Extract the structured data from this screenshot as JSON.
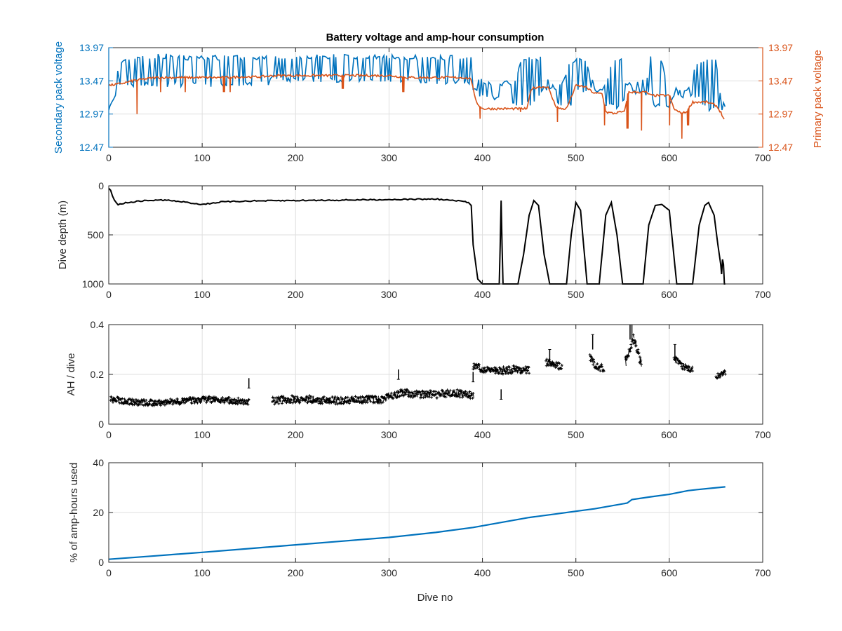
{
  "figure": {
    "title": "Battery voltage and amp-hour consumption",
    "xlabel": "Dive no"
  },
  "colors": {
    "secondary": "#0072BD",
    "primary": "#D95319",
    "black": "#000000",
    "grid": "#dfdfdf",
    "axis": "#262626"
  },
  "chart_data": [
    {
      "id": "voltage",
      "type": "line",
      "xlim": [
        0,
        700
      ],
      "xticks": [
        0,
        100,
        200,
        300,
        400,
        500,
        600,
        700
      ],
      "ylabel_left": "Secondary pack voltage",
      "ylabel_right": "Primary pack voltage",
      "ylim": [
        12.47,
        13.97
      ],
      "yticks": [
        12.47,
        12.97,
        13.47,
        13.97
      ],
      "grid": true,
      "series": [
        {
          "name": "Secondary pack voltage",
          "axis": "left",
          "x": [
            0,
            2,
            5,
            8,
            10,
            12,
            14,
            16,
            18,
            20,
            30,
            40,
            60,
            80,
            100,
            120,
            140,
            160,
            170,
            175,
            180,
            200,
            220,
            240,
            260,
            280,
            300,
            320,
            340,
            360,
            380,
            388,
            392,
            400,
            420,
            435,
            440,
            448,
            452,
            465,
            470,
            478,
            482,
            495,
            500,
            510,
            520,
            528,
            532,
            540,
            548,
            553,
            560,
            575,
            580,
            585,
            590,
            600,
            605,
            615,
            620,
            630,
            640,
            650,
            655,
            660
          ],
          "low": [
            13.03,
            13.1,
            13.15,
            13.2,
            13.25,
            13.35,
            13.35,
            13.38,
            13.38,
            13.38,
            13.38,
            13.38,
            13.38,
            13.38,
            13.38,
            13.38,
            13.38,
            13.38,
            13.38,
            13.5,
            13.45,
            13.45,
            13.45,
            13.45,
            13.45,
            13.45,
            13.45,
            13.42,
            13.42,
            13.42,
            13.42,
            13.4,
            13.28,
            13.2,
            13.15,
            13.1,
            13.1,
            13.1,
            13.1,
            13.3,
            13.3,
            13.3,
            13.05,
            13.1,
            13.3,
            13.3,
            13.3,
            13.3,
            13.05,
            13.05,
            13.0,
            13.25,
            13.25,
            13.25,
            13.25,
            13.05,
            13.05,
            13.05,
            13.2,
            13.2,
            13.2,
            13.2,
            13.0,
            13.0,
            13.0,
            12.97
          ],
          "high": [
            13.1,
            13.2,
            13.25,
            13.35,
            13.75,
            13.82,
            13.82,
            13.82,
            13.82,
            13.82,
            13.85,
            13.88,
            13.88,
            13.86,
            13.86,
            13.86,
            13.86,
            13.86,
            13.86,
            13.86,
            13.88,
            13.88,
            13.88,
            13.88,
            13.88,
            13.88,
            13.88,
            13.86,
            13.86,
            13.86,
            13.86,
            13.86,
            13.55,
            13.5,
            13.45,
            13.5,
            13.75,
            13.85,
            13.85,
            13.85,
            13.5,
            13.4,
            13.4,
            13.8,
            13.85,
            13.85,
            13.4,
            13.4,
            13.4,
            13.85,
            13.85,
            13.5,
            13.45,
            13.5,
            13.85,
            13.85,
            13.85,
            13.4,
            13.4,
            13.3,
            13.4,
            13.8,
            13.8,
            13.8,
            13.3,
            13.1
          ]
        },
        {
          "name": "Primary pack voltage",
          "axis": "right",
          "x": [
            0,
            10,
            20,
            28,
            30,
            40,
            50,
            56,
            60,
            80,
            100,
            120,
            128,
            140,
            160,
            180,
            200,
            250,
            300,
            320,
            360,
            380,
            388,
            392,
            396,
            400,
            420,
            440,
            448,
            452,
            460,
            470,
            478,
            482,
            490,
            500,
            510,
            520,
            528,
            532,
            540,
            548,
            552,
            556,
            560,
            575,
            580,
            590,
            600,
            605,
            610,
            614,
            618,
            625,
            640,
            650,
            655,
            660
          ],
          "y": [
            13.4,
            13.42,
            13.45,
            13.48,
            13.48,
            13.5,
            13.52,
            13.52,
            13.52,
            13.52,
            13.52,
            13.52,
            13.52,
            13.53,
            13.53,
            13.55,
            13.55,
            13.55,
            13.55,
            13.52,
            13.52,
            13.52,
            13.5,
            13.2,
            13.1,
            13.05,
            13.05,
            13.05,
            13.05,
            13.35,
            13.38,
            13.38,
            13.1,
            13.05,
            13.05,
            13.4,
            13.38,
            13.28,
            13.28,
            13.0,
            12.98,
            13.0,
            13.0,
            13.3,
            13.3,
            13.3,
            13.25,
            13.25,
            13.25,
            13.05,
            13.0,
            12.98,
            13.0,
            13.15,
            13.15,
            13.1,
            13.0,
            12.85
          ],
          "dips_x": [
            30,
            55,
            82,
            123,
            130,
            250,
            315,
            397,
            440,
            480,
            530,
            555,
            570,
            600,
            613,
            620
          ],
          "dips_y": [
            12.97,
            13.3,
            13.3,
            13.3,
            13.3,
            13.35,
            13.3,
            12.9,
            13.0,
            12.85,
            12.8,
            12.75,
            12.72,
            12.8,
            12.6,
            12.8
          ]
        }
      ]
    },
    {
      "id": "depth",
      "type": "line",
      "xlim": [
        0,
        700
      ],
      "xticks": [
        0,
        100,
        200,
        300,
        400,
        500,
        600,
        700
      ],
      "ylabel": "Dive depth (m)",
      "ylim": [
        0,
        1000
      ],
      "yticks": [
        0,
        500,
        1000
      ],
      "yreversed": true,
      "grid": true,
      "series": [
        {
          "name": "Dive depth",
          "x": [
            0,
            2,
            4,
            6,
            10,
            20,
            40,
            60,
            80,
            100,
            120,
            150,
            200,
            250,
            300,
            350,
            380,
            385,
            388,
            390,
            395,
            400,
            405,
            408,
            410,
            415,
            418,
            419,
            420,
            421,
            422,
            430,
            438,
            444,
            450,
            455,
            460,
            466,
            472,
            480,
            490,
            495,
            500,
            505,
            512,
            518,
            525,
            532,
            538,
            544,
            550,
            560,
            572,
            578,
            585,
            592,
            600,
            608,
            615,
            625,
            632,
            638,
            642,
            648,
            652,
            655,
            656,
            657,
            658,
            659,
            660
          ],
          "y": [
            20,
            40,
            100,
            150,
            190,
            170,
            150,
            145,
            165,
            190,
            165,
            155,
            150,
            145,
            140,
            135,
            160,
            170,
            200,
            600,
            950,
            1000,
            1000,
            1000,
            1000,
            1000,
            1000,
            600,
            150,
            600,
            1000,
            1000,
            1000,
            700,
            300,
            150,
            200,
            700,
            1000,
            1000,
            1000,
            500,
            170,
            250,
            1000,
            1000,
            1000,
            300,
            170,
            500,
            1000,
            1000,
            1000,
            400,
            200,
            190,
            250,
            1000,
            1000,
            1000,
            400,
            200,
            170,
            300,
            600,
            800,
            900,
            750,
            800,
            1000,
            1000
          ]
        }
      ]
    },
    {
      "id": "ah",
      "type": "scatter",
      "xlim": [
        0,
        700
      ],
      "xticks": [
        0,
        100,
        200,
        300,
        400,
        500,
        600,
        700
      ],
      "ylabel": "AH / dive",
      "ylim": [
        0,
        0.4
      ],
      "yticks": [
        0,
        0.2,
        0.4
      ],
      "grid": true,
      "series": [
        {
          "name": "AH / dive",
          "segments": [
            {
              "x0": 2,
              "x1": 150,
              "base": [
                0.1,
                0.09,
                0.085,
                0.09,
                0.095,
                0.1,
                0.095,
                0.09
              ],
              "spread": 0.025
            },
            {
              "x0": 175,
              "x1": 295,
              "base": [
                0.095,
                0.1,
                0.1,
                0.095,
                0.095,
                0.1,
                0.1
              ],
              "spread": 0.03
            },
            {
              "x0": 295,
              "x1": 390,
              "base": [
                0.11,
                0.125,
                0.12,
                0.12,
                0.125,
                0.115
              ],
              "spread": 0.03
            },
            {
              "x0": 390,
              "x1": 450,
              "base": [
                0.23,
                0.22,
                0.215,
                0.22,
                0.22
              ],
              "spread": 0.03
            },
            {
              "x0": 468,
              "x1": 485,
              "base": [
                0.25,
                0.235,
                0.23
              ],
              "spread": 0.03
            },
            {
              "x0": 515,
              "x1": 530,
              "base": [
                0.27,
                0.23,
                0.225
              ],
              "spread": 0.03
            },
            {
              "x0": 553,
              "x1": 570,
              "base": [
                0.25,
                0.35,
                0.24
              ],
              "spread": 0.04
            },
            {
              "x0": 605,
              "x1": 625,
              "base": [
                0.27,
                0.23,
                0.22
              ],
              "spread": 0.025
            },
            {
              "x0": 650,
              "x1": 660,
              "base": [
                0.19,
                0.21
              ],
              "spread": 0.02
            }
          ],
          "spikes_x": [
            150,
            310,
            390,
            420,
            472,
            518,
            558,
            560,
            606
          ],
          "spikes_y": [
            0.145,
            0.18,
            0.17,
            0.1,
            0.3,
            0.36,
            0.4,
            0.4,
            0.32
          ]
        }
      ]
    },
    {
      "id": "percent",
      "type": "line",
      "xlim": [
        0,
        700
      ],
      "xticks": [
        0,
        100,
        200,
        300,
        400,
        500,
        600,
        700
      ],
      "ylabel": "% of amp-hours used",
      "ylim": [
        0,
        40
      ],
      "yticks": [
        0,
        20,
        40
      ],
      "grid": true,
      "series": [
        {
          "name": "% of amp-hours used",
          "x": [
            0,
            50,
            100,
            150,
            200,
            250,
            300,
            350,
            390,
            420,
            450,
            480,
            500,
            520,
            555,
            560,
            580,
            600,
            620,
            630,
            660
          ],
          "y": [
            1.2,
            2.6,
            4.0,
            5.5,
            7.0,
            8.5,
            10.0,
            12.0,
            14.0,
            16.0,
            18.0,
            19.5,
            20.5,
            21.5,
            23.8,
            25.2,
            26.3,
            27.3,
            28.8,
            29.2,
            30.3
          ]
        }
      ]
    }
  ]
}
